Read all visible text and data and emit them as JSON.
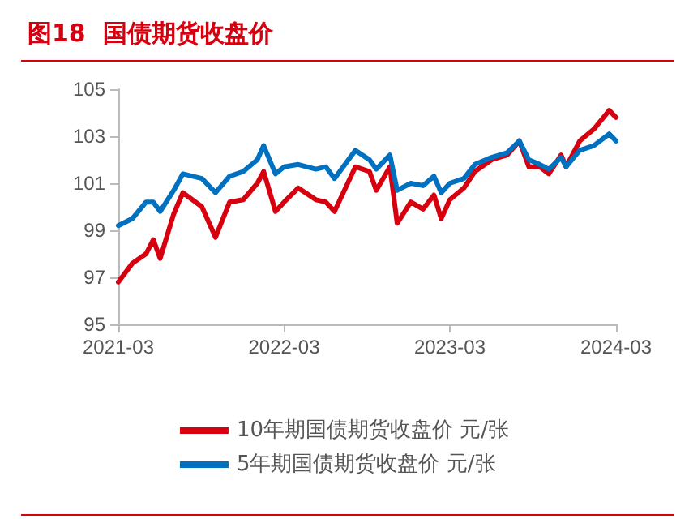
{
  "chart_data": {
    "type": "line",
    "title": "图18  国债期货收盘价",
    "x": [
      "2021-03-01",
      "2021-04-01",
      "2021-05-01",
      "2021-05-17",
      "2021-06-01",
      "2021-07-01",
      "2021-07-21",
      "2021-09-01",
      "2021-10-01",
      "2021-11-01",
      "2021-12-01",
      "2022-01-01",
      "2022-01-15",
      "2022-02-10",
      "2022-03-01",
      "2022-04-01",
      "2022-05-10",
      "2022-06-01",
      "2022-06-20",
      "2022-08-05",
      "2022-09-05",
      "2022-09-20",
      "2022-10-20",
      "2022-11-05",
      "2022-12-05",
      "2023-01-01",
      "2023-01-25",
      "2023-02-10",
      "2023-03-01",
      "2023-04-01",
      "2023-04-25",
      "2023-06-01",
      "2023-07-05",
      "2023-08-01",
      "2023-08-22",
      "2023-09-15",
      "2023-10-05",
      "2023-11-01",
      "2023-11-12",
      "2023-12-12",
      "2024-01-12",
      "2024-02-15",
      "2024-03-01"
    ],
    "series": [
      {
        "name": "10年期国债期货收盘价 元/张",
        "color": "#d7000f",
        "values": [
          96.8,
          97.6,
          98.0,
          98.6,
          97.8,
          99.7,
          100.6,
          100.0,
          98.7,
          100.2,
          100.3,
          101.0,
          101.5,
          99.8,
          100.2,
          100.8,
          100.3,
          100.2,
          99.8,
          101.7,
          101.5,
          100.7,
          101.7,
          99.3,
          100.2,
          99.9,
          100.5,
          99.5,
          100.3,
          100.8,
          101.5,
          102.0,
          102.2,
          102.8,
          101.7,
          101.7,
          101.4,
          102.2,
          101.7,
          102.8,
          103.3,
          104.1,
          103.8
        ]
      },
      {
        "name": "5年期国债期货收盘价 元/张",
        "color": "#0070c0",
        "values": [
          99.2,
          99.5,
          100.2,
          100.2,
          99.8,
          100.7,
          101.4,
          101.2,
          100.6,
          101.3,
          101.5,
          102.0,
          102.6,
          101.4,
          101.7,
          101.8,
          101.6,
          101.7,
          101.2,
          102.4,
          102.0,
          101.6,
          102.2,
          100.7,
          101.0,
          100.9,
          101.3,
          100.6,
          101.0,
          101.2,
          101.8,
          102.1,
          102.3,
          102.8,
          102.0,
          101.8,
          101.6,
          102.1,
          101.7,
          102.4,
          102.6,
          103.1,
          102.8
        ]
      }
    ],
    "xlim": [
      "2021-03",
      "2024-03"
    ],
    "xticks": [
      "2021-03",
      "2022-03",
      "2023-03",
      "2024-03"
    ],
    "ylim": [
      95,
      105
    ],
    "yticks": [
      95,
      97,
      99,
      101,
      103,
      105
    ],
    "legend": "bottom",
    "grid": false,
    "marker": "none",
    "line_style": "solid"
  }
}
